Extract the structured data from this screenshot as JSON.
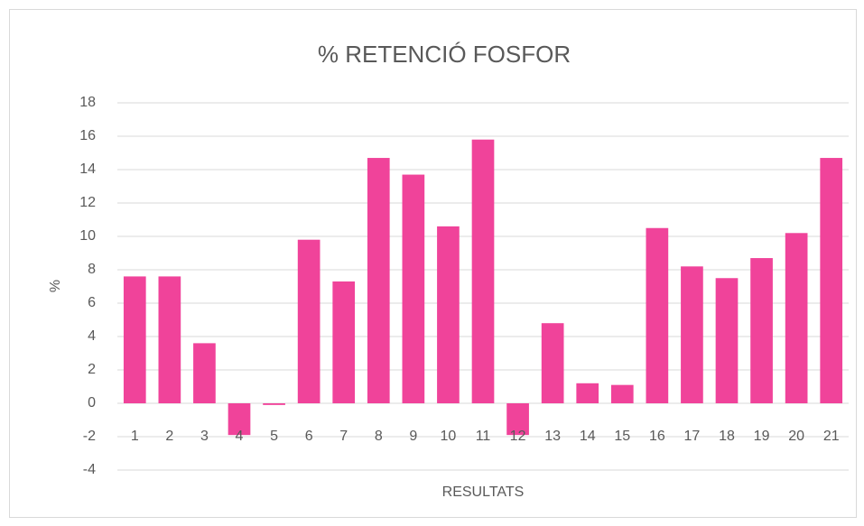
{
  "chart_data": {
    "type": "bar",
    "title": "% RETENCIÓ FOSFOR",
    "x_label": "RESULTATS",
    "y_label": "%",
    "categories": [
      "1",
      "2",
      "3",
      "4",
      "5",
      "6",
      "7",
      "8",
      "9",
      "10",
      "11",
      "12",
      "13",
      "14",
      "15",
      "16",
      "17",
      "18",
      "19",
      "20",
      "21"
    ],
    "values": [
      7.6,
      7.6,
      3.6,
      -1.9,
      -0.1,
      9.8,
      7.3,
      14.7,
      13.7,
      10.6,
      15.8,
      -1.9,
      4.8,
      1.2,
      1.1,
      10.5,
      8.2,
      7.5,
      8.7,
      10.2,
      14.7
    ],
    "color": "#f0439a",
    "ylim": [
      -4,
      18
    ],
    "yticks": [
      -4,
      -2,
      0,
      2,
      4,
      6,
      8,
      10,
      12,
      14,
      16,
      18
    ],
    "grid": true
  }
}
